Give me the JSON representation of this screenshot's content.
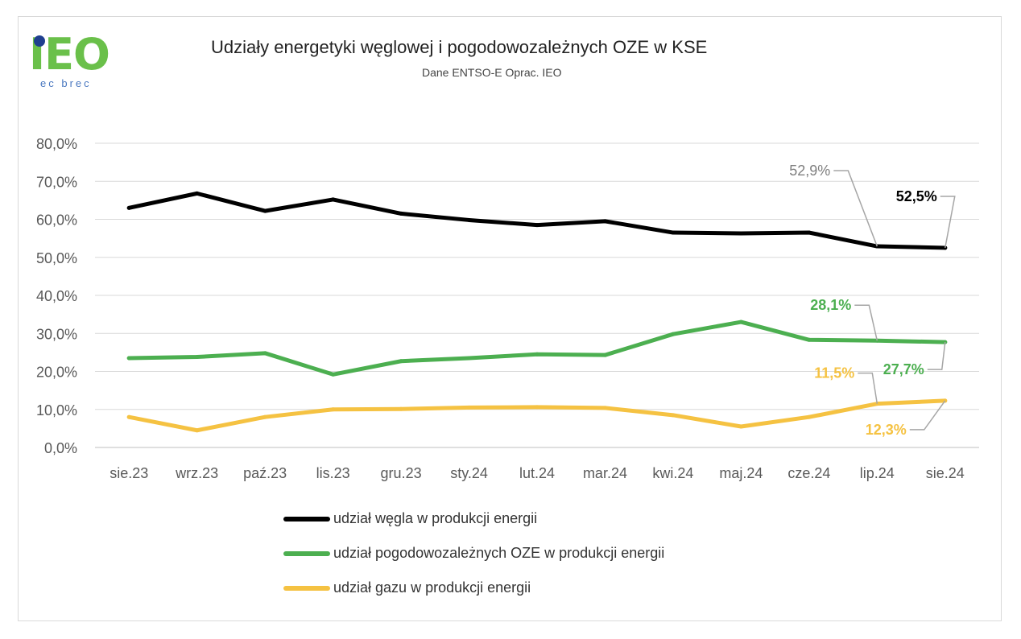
{
  "logo": {
    "word": "IEO",
    "sub": "ec brec"
  },
  "colors": {
    "coal": "#000000",
    "oze": "#4caf50",
    "gas": "#f5c242",
    "grid": "#d9d9d9",
    "text": "#595959",
    "label_gray": "#7f7f7f"
  },
  "chart_data": {
    "type": "line",
    "title": "Udziały energetyki węglowej i pogodowozależnych OZE w KSE",
    "subtitle": "Dane ENTSO-E Oprac. IEO",
    "categories": [
      "sie.23",
      "wrz.23",
      "paź.23",
      "lis.23",
      "gru.23",
      "sty.24",
      "lut.24",
      "mar.24",
      "kwi.24",
      "maj.24",
      "cze.24",
      "lip.24",
      "sie.24"
    ],
    "ylim": [
      0,
      80
    ],
    "yticks": [
      "0,0%",
      "10,0%",
      "20,0%",
      "30,0%",
      "40,0%",
      "50,0%",
      "60,0%",
      "70,0%",
      "80,0%"
    ],
    "grid": true,
    "legend_position": "bottom",
    "series": [
      {
        "name": "udział węgla w produkcji energii",
        "color_key": "coal",
        "values": [
          63.0,
          66.8,
          62.2,
          65.2,
          61.5,
          59.8,
          58.5,
          59.5,
          56.5,
          56.3,
          56.5,
          52.9,
          52.5
        ]
      },
      {
        "name": "udział pogodowozależnych OZE w produkcji  energii",
        "color_key": "oze",
        "values": [
          23.5,
          23.8,
          24.8,
          19.2,
          22.7,
          23.5,
          24.5,
          24.3,
          29.8,
          33.0,
          28.3,
          28.1,
          27.7
        ]
      },
      {
        "name": "udział gazu w produkcji energii",
        "color_key": "gas",
        "values": [
          8.0,
          4.5,
          8.0,
          10.0,
          10.1,
          10.5,
          10.6,
          10.4,
          8.5,
          5.5,
          8.0,
          11.5,
          12.3
        ]
      }
    ],
    "annotations": [
      {
        "text": "52,9%",
        "series": 0,
        "index": 11,
        "color_key": "label_gray",
        "bold": false
      },
      {
        "text": "52,5%",
        "series": 0,
        "index": 12,
        "color_key": "coal",
        "bold": true
      },
      {
        "text": "28,1%",
        "series": 1,
        "index": 11,
        "color_key": "oze",
        "bold": true
      },
      {
        "text": "27,7%",
        "series": 1,
        "index": 12,
        "color_key": "oze",
        "bold": true
      },
      {
        "text": "11,5%",
        "series": 2,
        "index": 11,
        "color_key": "gas",
        "bold": true
      },
      {
        "text": "12,3%",
        "series": 2,
        "index": 12,
        "color_key": "gas",
        "bold": true
      }
    ]
  }
}
